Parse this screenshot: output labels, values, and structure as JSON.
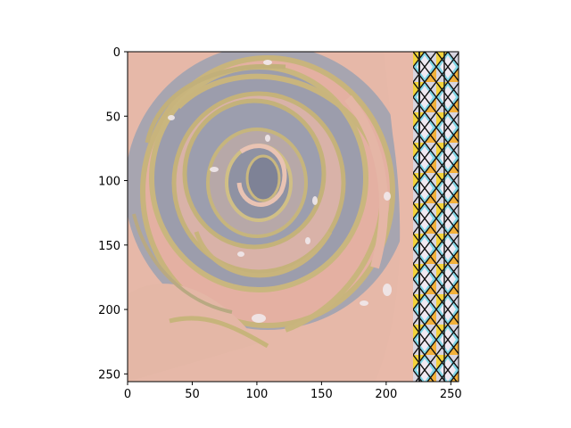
{
  "image": {
    "subject": "stylized rose painting with stained-glass pattern strip on right edge",
    "palette": {
      "petal_pink": "#e8b3a3",
      "petal_gray": "#9a9ba8",
      "edge_gold": "#c4b27a",
      "highlight": "#f1e9ec",
      "strip_yellow": "#f2d23a",
      "strip_cyan": "#7fd6e6",
      "strip_line": "#111111"
    }
  },
  "axes": {
    "x_ticks": [
      "0",
      "50",
      "100",
      "150",
      "200",
      "250"
    ],
    "y_ticks": [
      "0",
      "50",
      "100",
      "150",
      "200",
      "250"
    ],
    "xlim": [
      0,
      256
    ],
    "ylim": [
      256,
      0
    ],
    "x_tick_values": [
      0,
      50,
      100,
      150,
      200,
      250
    ],
    "y_tick_values": [
      0,
      50,
      100,
      150,
      200,
      250
    ]
  }
}
